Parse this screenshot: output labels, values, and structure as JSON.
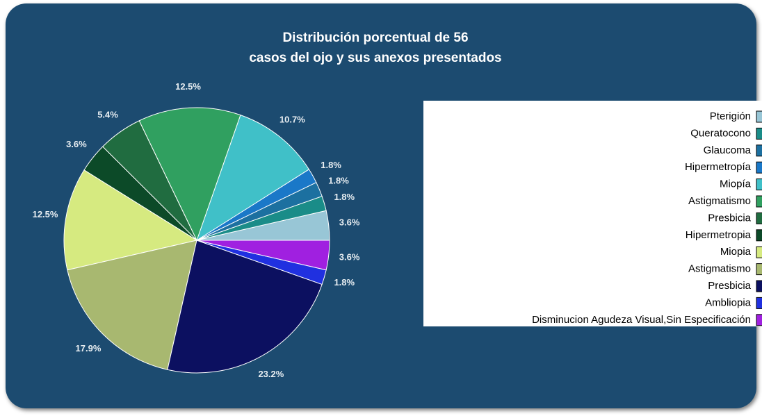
{
  "chart_data": {
    "type": "pie",
    "title": [
      "Distribución porcentual de 56",
      "casos del ojo y sus anexos presentados"
    ],
    "categories": [
      "Pterigión",
      "Queratocono",
      "Glaucoma",
      "Hipermetropía",
      "Miopía",
      "Astigmatismo",
      "Presbicia",
      "Hipermetropia",
      "Miopia",
      "Astigmatismo",
      "Presbicia",
      "Ambliopia",
      "Disminucion Agudeza Visual,Sin Especificación"
    ],
    "values": [
      3.6,
      1.8,
      1.8,
      1.8,
      10.7,
      12.5,
      5.4,
      3.6,
      12.5,
      17.9,
      23.2,
      1.8,
      3.6
    ],
    "value_labels": [
      "3.6%",
      "1.8%",
      "1.8%",
      "1.8%",
      "10.7%",
      "12.5%",
      "5.4%",
      "3.6%",
      "12.5%",
      "17.9%",
      "23.2%",
      "1.8%",
      "3.6%"
    ],
    "colors": [
      "#98c6d6",
      "#1a8c88",
      "#1c70a0",
      "#1a78c8",
      "#40c0c8",
      "#30a060",
      "#206c40",
      "#0c4a28",
      "#d6ea80",
      "#a8b870",
      "#0c1060",
      "#2030e0",
      "#a020e0"
    ],
    "legend": "right"
  }
}
